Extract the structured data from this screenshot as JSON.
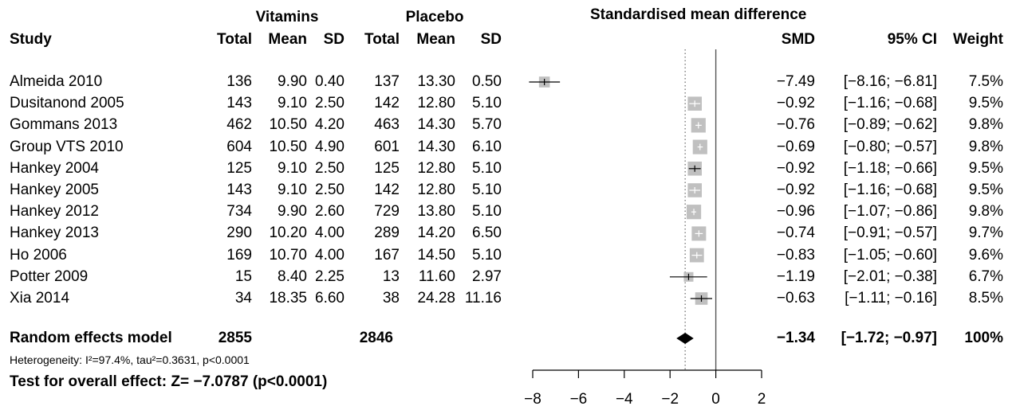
{
  "headers": {
    "study": "Study",
    "vitamins": "Vitamins",
    "placebo": "Placebo",
    "total": "Total",
    "mean": "Mean",
    "sd": "SD",
    "plot_title": "Standardised mean difference",
    "smd": "SMD",
    "ci": "95% CI",
    "weight": "Weight"
  },
  "studies": [
    {
      "name": "Almeida 2010",
      "v_total": "136",
      "v_mean": "9.90",
      "v_sd": "0.40",
      "p_total": "137",
      "p_mean": "13.30",
      "p_sd": "0.50",
      "smd": "−7.49",
      "ci": "[−8.16; −6.81]",
      "weight": "7.5%"
    },
    {
      "name": "Dusitanond 2005",
      "v_total": "143",
      "v_mean": "9.10",
      "v_sd": "2.50",
      "p_total": "142",
      "p_mean": "12.80",
      "p_sd": "5.10",
      "smd": "−0.92",
      "ci": "[−1.16; −0.68]",
      "weight": "9.5%"
    },
    {
      "name": "Gommans 2013",
      "v_total": "462",
      "v_mean": "10.50",
      "v_sd": "4.20",
      "p_total": "463",
      "p_mean": "14.30",
      "p_sd": "5.70",
      "smd": "−0.76",
      "ci": "[−0.89; −0.62]",
      "weight": "9.8%"
    },
    {
      "name": "Group VTS 2010",
      "v_total": "604",
      "v_mean": "10.50",
      "v_sd": "4.90",
      "p_total": "601",
      "p_mean": "14.30",
      "p_sd": "6.10",
      "smd": "−0.69",
      "ci": "[−0.80; −0.57]",
      "weight": "9.8%"
    },
    {
      "name": "Hankey 2004",
      "v_total": "125",
      "v_mean": "9.10",
      "v_sd": "2.50",
      "p_total": "125",
      "p_mean": "12.80",
      "p_sd": "5.10",
      "smd": "−0.92",
      "ci": "[−1.18; −0.66]",
      "weight": "9.5%"
    },
    {
      "name": "Hankey 2005",
      "v_total": "143",
      "v_mean": "9.10",
      "v_sd": "2.50",
      "p_total": "142",
      "p_mean": "12.80",
      "p_sd": "5.10",
      "smd": "−0.92",
      "ci": "[−1.16; −0.68]",
      "weight": "9.5%"
    },
    {
      "name": "Hankey 2012",
      "v_total": "734",
      "v_mean": "9.90",
      "v_sd": "2.60",
      "p_total": "729",
      "p_mean": "13.80",
      "p_sd": "5.10",
      "smd": "−0.96",
      "ci": "[−1.07; −0.86]",
      "weight": "9.8%"
    },
    {
      "name": "Hankey 2013",
      "v_total": "290",
      "v_mean": "10.20",
      "v_sd": "4.00",
      "p_total": "289",
      "p_mean": "14.20",
      "p_sd": "6.50",
      "smd": "−0.74",
      "ci": "[−0.91; −0.57]",
      "weight": "9.7%"
    },
    {
      "name": "Ho 2006",
      "v_total": "169",
      "v_mean": "10.70",
      "v_sd": "4.00",
      "p_total": "167",
      "p_mean": "14.50",
      "p_sd": "5.10",
      "smd": "−0.83",
      "ci": "[−1.05; −0.60]",
      "weight": "9.6%"
    },
    {
      "name": "Potter 2009",
      "v_total": "15",
      "v_mean": "8.40",
      "v_sd": "2.25",
      "p_total": "13",
      "p_mean": "11.60",
      "p_sd": "2.97",
      "smd": "−1.19",
      "ci": "[−2.01; −0.38]",
      "weight": "6.7%"
    },
    {
      "name": "Xia 2014",
      "v_total": "34",
      "v_mean": "18.35",
      "v_sd": "6.60",
      "p_total": "38",
      "p_mean": "24.28",
      "p_sd": "11.16",
      "smd": "−0.63",
      "ci": "[−1.11; −0.16]",
      "weight": "8.5%"
    }
  ],
  "summary": {
    "label": "Random effects model",
    "v_total": "2855",
    "p_total": "2846",
    "smd": "−1.34",
    "ci": "[−1.72; −0.97]",
    "weight": "100%",
    "heterogeneity": "Heterogeneity: I²=97.4%, tau²=0.3631, p<0.0001",
    "overall_test": "Test for overall effect: Z= −7.0787 (p<0.0001)"
  },
  "chart_data": {
    "type": "forest",
    "title": "Standardised mean difference",
    "xlim": [
      -8,
      2
    ],
    "xticks": [
      -8,
      -6,
      -4,
      -2,
      0,
      2
    ],
    "xtick_labels": [
      "−8",
      "−6",
      "−4",
      "−2",
      "0",
      "2"
    ],
    "null_line": 0,
    "summary_line": -1.34,
    "studies": [
      {
        "name": "Almeida 2010",
        "smd": -7.49,
        "lower": -8.16,
        "upper": -6.81,
        "weight": 7.5
      },
      {
        "name": "Dusitanond 2005",
        "smd": -0.92,
        "lower": -1.16,
        "upper": -0.68,
        "weight": 9.5
      },
      {
        "name": "Gommans 2013",
        "smd": -0.76,
        "lower": -0.89,
        "upper": -0.62,
        "weight": 9.8
      },
      {
        "name": "Group VTS 2010",
        "smd": -0.69,
        "lower": -0.8,
        "upper": -0.57,
        "weight": 9.8
      },
      {
        "name": "Hankey 2004",
        "smd": -0.92,
        "lower": -1.18,
        "upper": -0.66,
        "weight": 9.5
      },
      {
        "name": "Hankey 2005",
        "smd": -0.92,
        "lower": -1.16,
        "upper": -0.68,
        "weight": 9.5
      },
      {
        "name": "Hankey 2012",
        "smd": -0.96,
        "lower": -1.07,
        "upper": -0.86,
        "weight": 9.8
      },
      {
        "name": "Hankey 2013",
        "smd": -0.74,
        "lower": -0.91,
        "upper": -0.57,
        "weight": 9.7
      },
      {
        "name": "Ho 2006",
        "smd": -0.83,
        "lower": -1.05,
        "upper": -0.6,
        "weight": 9.6
      },
      {
        "name": "Potter 2009",
        "smd": -1.19,
        "lower": -2.01,
        "upper": -0.38,
        "weight": 6.7
      },
      {
        "name": "Xia 2014",
        "smd": -0.63,
        "lower": -1.11,
        "upper": -0.16,
        "weight": 8.5
      }
    ],
    "summary": {
      "smd": -1.34,
      "lower": -1.72,
      "upper": -0.97
    }
  }
}
